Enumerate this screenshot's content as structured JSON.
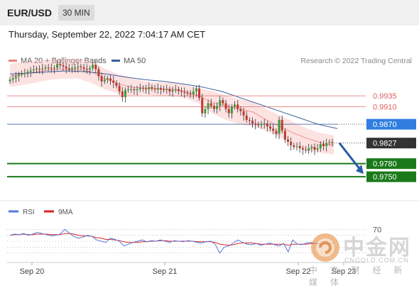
{
  "header": {
    "pair": "EUR/USD",
    "timeframe": "30 MIN"
  },
  "datetime": "Thursday, September 22, 2022 7:04:17 AM CET",
  "legend": [
    {
      "label": "MA 20 + Bollinger Bands",
      "color": "#f08080"
    },
    {
      "label": "MA 50",
      "color": "#3a5f9a"
    }
  ],
  "credit": "Research © 2022 Trading Central",
  "watermark": {
    "big": "中金网",
    "url": "CNGOLD.COM.CN",
    "sub": "中 文 财 经 新 媒 体"
  },
  "colors": {
    "resistance": "#e06060",
    "ma50": "#3a5f9a",
    "support": "#1a7a1a",
    "current": "#333333",
    "arrow": "#2a5da8",
    "rsi": "#5577dd",
    "rsi_ma": "#dd2222"
  },
  "chart_data": {
    "type": "candlestick",
    "ylim": [
      0.97,
      1.0
    ],
    "x_ticks": [
      "Sep 20",
      "Sep 21",
      "Sep 22",
      "Sep 23"
    ],
    "levels": [
      {
        "value": 0.9935,
        "label": "0.9935",
        "kind": "resistance"
      },
      {
        "value": 0.991,
        "label": "0.9910",
        "kind": "resistance"
      },
      {
        "value": 0.987,
        "label": "0.9870",
        "kind": "ma50"
      },
      {
        "value": 0.9827,
        "label": "0.9827",
        "kind": "current"
      },
      {
        "value": 0.978,
        "label": "0.9780",
        "kind": "support"
      },
      {
        "value": 0.975,
        "label": "0.9750",
        "kind": "support"
      }
    ],
    "close": [
      0.9972,
      0.9975,
      0.998,
      0.9984,
      0.9985,
      0.9987,
      0.999,
      0.9993,
      0.9995,
      0.9997,
      0.9996,
      0.9998,
      1.0,
      0.9999,
      0.9998,
      0.9999,
      1.0008,
      1.0005,
      1.0002,
      0.9998,
      0.9995,
      0.9998,
      1.0,
      1.0002,
      1.0,
      0.9997,
      0.9995,
      0.9998,
      1.0006,
      0.9996,
      0.998,
      0.9968,
      0.9972,
      0.9975,
      0.997,
      0.9965,
      0.9958,
      0.9945,
      0.9932,
      0.9948,
      0.995,
      0.995,
      0.9948,
      0.995,
      0.9953,
      0.9952,
      0.995,
      0.9955,
      0.9952,
      0.995,
      0.9953,
      0.995,
      0.9948,
      0.995,
      0.9945,
      0.9948,
      0.995,
      0.9946,
      0.9944,
      0.9942,
      0.994,
      0.9938,
      0.9945,
      0.9952,
      0.993,
      0.9895,
      0.9905,
      0.9918,
      0.9912,
      0.9905,
      0.9912,
      0.9925,
      0.9918,
      0.9905,
      0.9895,
      0.991,
      0.9915,
      0.9905,
      0.99,
      0.989,
      0.988,
      0.9878,
      0.9872,
      0.987,
      0.9868,
      0.987,
      0.9872,
      0.9865,
      0.986,
      0.9855,
      0.9848,
      0.988,
      0.9855,
      0.9835,
      0.983,
      0.9822,
      0.9818,
      0.982,
      0.9815,
      0.9812,
      0.981,
      0.9815,
      0.9818,
      0.9812,
      0.9815,
      0.9825,
      0.982,
      0.9827,
      0.9829,
      0.9827
    ],
    "open_offsets_hint": "open equals previous close",
    "ma20": [
      0.998,
      0.9985,
      0.999,
      0.9995,
      0.9996,
      0.9996,
      0.999,
      0.9975,
      0.9962,
      0.9955,
      0.9953,
      0.995,
      0.995,
      0.9945,
      0.9935,
      0.992,
      0.9912,
      0.9905,
      0.9898,
      0.988,
      0.9865,
      0.985,
      0.9838,
      0.9828,
      0.9822
    ],
    "ma50": [
      0.9985,
      0.9987,
      0.999,
      0.9992,
      0.999,
      0.9985,
      0.9978,
      0.9972,
      0.9968,
      0.9962,
      0.9955,
      0.9945,
      0.993,
      0.9915,
      0.99,
      0.9885,
      0.987,
      0.986
    ],
    "bb_upper": [
      1.0008,
      1.0012,
      1.0016,
      1.0018,
      1.0019,
      1.002,
      1.0015,
      0.9998,
      0.9985,
      0.9975,
      0.9968,
      0.9966,
      0.9965,
      0.996,
      0.9952,
      0.9946,
      0.9935,
      0.9928,
      0.992,
      0.9905,
      0.989,
      0.9875,
      0.986,
      0.985,
      0.9845
    ],
    "bb_lower": [
      0.9955,
      0.996,
      0.9966,
      0.9972,
      0.9974,
      0.9975,
      0.9965,
      0.995,
      0.994,
      0.9935,
      0.9938,
      0.9935,
      0.9935,
      0.993,
      0.9918,
      0.9895,
      0.988,
      0.987,
      0.9865,
      0.9855,
      0.984,
      0.9825,
      0.981,
      0.9805,
      0.98
    ],
    "rsi": {
      "legend": [
        "RSI",
        "9MA"
      ],
      "level_label": "70",
      "ylim": [
        20,
        80
      ],
      "rsi_values": [
        60,
        62,
        61,
        63,
        60,
        62,
        65,
        63,
        61,
        59,
        60,
        62,
        70,
        64,
        58,
        55,
        57,
        60,
        58,
        52,
        50,
        48,
        55,
        53,
        50,
        42,
        45,
        48,
        50,
        52,
        49,
        51,
        50,
        52,
        50,
        48,
        51,
        50,
        49,
        51,
        50,
        48,
        47,
        49,
        50,
        45,
        30,
        40,
        42,
        47,
        52,
        48,
        45,
        44,
        46,
        43,
        45,
        47,
        44,
        42,
        46,
        32,
        52,
        45,
        44,
        47,
        48,
        46,
        45,
        44,
        46,
        47
      ],
      "ma_values": [
        60,
        61,
        61,
        62,
        61,
        61,
        62,
        62,
        62,
        61,
        61,
        61,
        63,
        63,
        62,
        60,
        59,
        59,
        58,
        56,
        55,
        53,
        53,
        52,
        51,
        49,
        48,
        48,
        48,
        49,
        49,
        50,
        50,
        51,
        51,
        50,
        50,
        50,
        50,
        50,
        50,
        49,
        49,
        49,
        49,
        48,
        45,
        44,
        43,
        44,
        46,
        47,
        47,
        47,
        46,
        45,
        45,
        45,
        45,
        45,
        45,
        43,
        45,
        45,
        45,
        45,
        46,
        46,
        46,
        46,
        46,
        46
      ]
    }
  }
}
